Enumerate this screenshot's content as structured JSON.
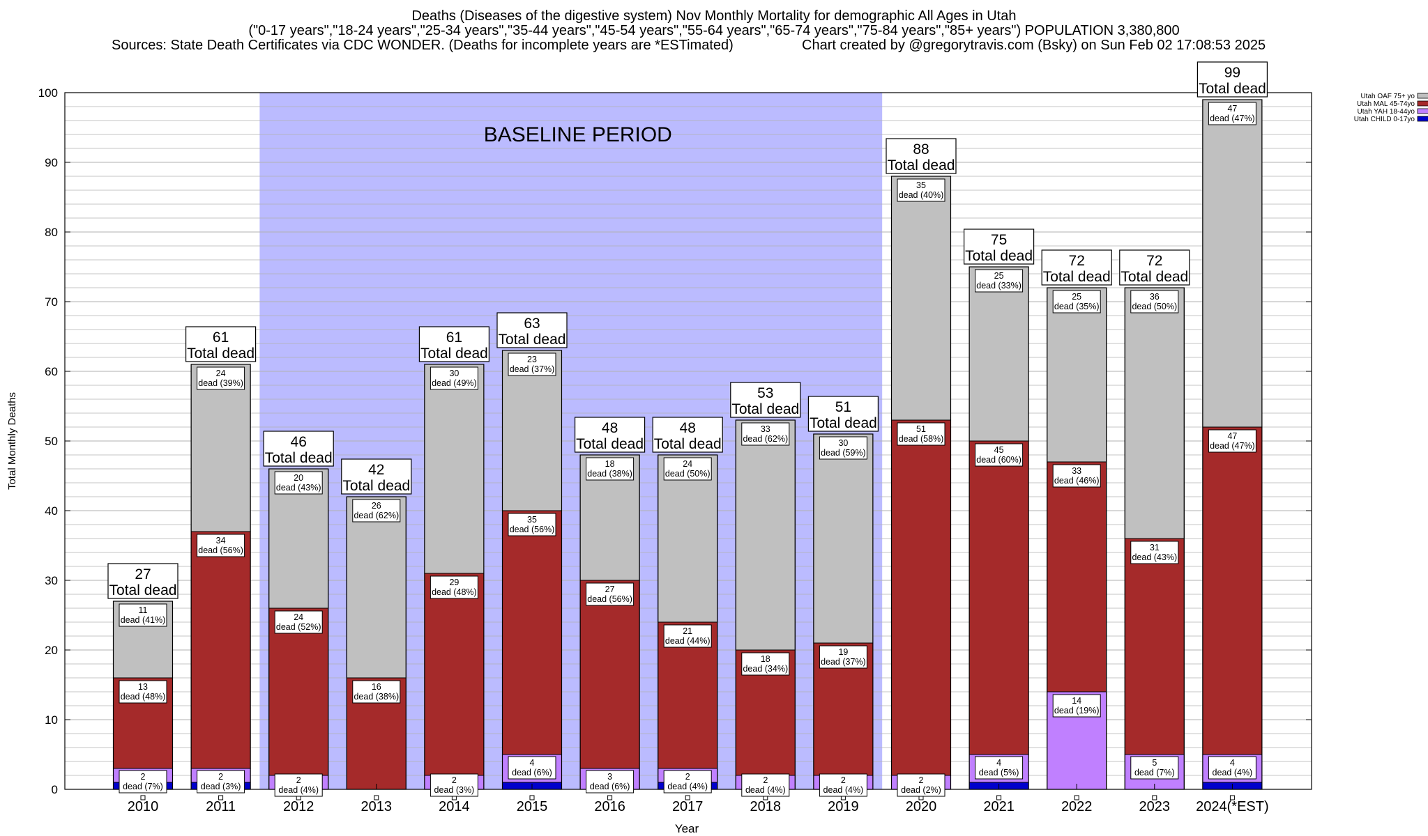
{
  "header": {
    "title_line1": "Deaths (Diseases of the digestive system) Nov Monthly Mortality for demographic All Ages in Utah",
    "title_line2": "(\"0-17 years\",\"18-24 years\",\"25-34 years\",\"35-44 years\",\"45-54 years\",\"55-64 years\",\"65-74 years\",\"75-84 years\",\"85+ years\") POPULATION 3,380,800",
    "sources": "Sources: State Death Certificates via CDC WONDER. (Deaths for incomplete years are *ESTimated)",
    "credit": "Chart created by @gregorytravis.com (Bsky) on Sun Feb 02 17:08:53 2025"
  },
  "chart_data": {
    "type": "bar",
    "stacked": true,
    "xlabel": "Year",
    "ylabel": "Total Monthly Deaths",
    "ylim": [
      0,
      100
    ],
    "y_ticks": [
      "0",
      "10",
      "20",
      "30",
      "40",
      "50",
      "60",
      "70",
      "80",
      "90",
      "100"
    ],
    "grid": true,
    "baseline_label": "BASELINE PERIOD",
    "baseline_categories": [
      "2012",
      "2019"
    ],
    "total_suffix": "Total dead",
    "categories": [
      "2010",
      "2011",
      "2012",
      "2013",
      "2014",
      "2015",
      "2016",
      "2017",
      "2018",
      "2019",
      "2020",
      "2021",
      "2022",
      "2023",
      "2024(*EST)"
    ],
    "totals": [
      27,
      61,
      46,
      42,
      61,
      63,
      48,
      48,
      53,
      51,
      88,
      75,
      72,
      72,
      99
    ],
    "legend_position": "top-right",
    "series": [
      {
        "name": "Utah CHILD 0-17yo",
        "color": "#0000cc",
        "values": [
          1,
          1,
          0,
          0,
          0,
          1,
          0,
          1,
          0,
          0,
          0,
          1,
          0,
          0,
          1
        ],
        "labels": [
          "",
          "",
          "",
          "",
          "",
          "",
          "",
          "",
          "",
          "",
          "",
          "",
          "",
          "",
          ""
        ]
      },
      {
        "name": "Utah YAH 18-44yo",
        "color": "#c080ff",
        "values": [
          2,
          2,
          2,
          0,
          2,
          4,
          3,
          2,
          2,
          2,
          2,
          4,
          14,
          5,
          4
        ],
        "labels": [
          [
            "2",
            "dead (7%)"
          ],
          [
            "2",
            "dead (3%)"
          ],
          [
            "2",
            "dead (4%)"
          ],
          "",
          [
            "2",
            "dead (3%)"
          ],
          [
            "4",
            "dead (6%)"
          ],
          [
            "3",
            "dead (6%)"
          ],
          [
            "2",
            "dead (4%)"
          ],
          [
            "2",
            "dead (4%)"
          ],
          [
            "2",
            "dead (4%)"
          ],
          [
            "2",
            "dead (2%)"
          ],
          [
            "4",
            "dead (5%)"
          ],
          [
            "14",
            "dead (19%)"
          ],
          [
            "5",
            "dead (7%)"
          ],
          [
            "4",
            "dead (4%)"
          ]
        ]
      },
      {
        "name": "Utah MAL 45-74yo",
        "color": "#a52a2a",
        "values": [
          13,
          34,
          24,
          16,
          29,
          35,
          27,
          21,
          18,
          19,
          51,
          45,
          33,
          31,
          47
        ],
        "labels": [
          [
            "13",
            "dead (48%)"
          ],
          [
            "34",
            "dead (56%)"
          ],
          [
            "24",
            "dead (52%)"
          ],
          [
            "16",
            "dead (38%)"
          ],
          [
            "29",
            "dead (48%)"
          ],
          [
            "35",
            "dead (56%)"
          ],
          [
            "27",
            "dead (56%)"
          ],
          [
            "21",
            "dead (44%)"
          ],
          [
            "18",
            "dead (34%)"
          ],
          [
            "19",
            "dead (37%)"
          ],
          [
            "51",
            "dead (58%)"
          ],
          [
            "45",
            "dead (60%)"
          ],
          [
            "33",
            "dead (46%)"
          ],
          [
            "31",
            "dead (43%)"
          ],
          [
            "47",
            "dead (47%)"
          ]
        ]
      },
      {
        "name": "Utah OAF 75+ yo",
        "color": "#c0c0c0",
        "values": [
          11,
          24,
          20,
          26,
          30,
          23,
          18,
          24,
          33,
          30,
          35,
          25,
          25,
          36,
          47
        ],
        "labels": [
          [
            "11",
            "dead (41%)"
          ],
          [
            "24",
            "dead (39%)"
          ],
          [
            "20",
            "dead (43%)"
          ],
          [
            "26",
            "dead (62%)"
          ],
          [
            "30",
            "dead (49%)"
          ],
          [
            "23",
            "dead (37%)"
          ],
          [
            "18",
            "dead (38%)"
          ],
          [
            "24",
            "dead (50%)"
          ],
          [
            "33",
            "dead (62%)"
          ],
          [
            "30",
            "dead (59%)"
          ],
          [
            "35",
            "dead (40%)"
          ],
          [
            "25",
            "dead (33%)"
          ],
          [
            "25",
            "dead (35%)"
          ],
          [
            "36",
            "dead (50%)"
          ],
          [
            "47",
            "dead (47%)"
          ]
        ]
      }
    ],
    "legend_order": [
      "Utah OAF 75+ yo",
      "Utah MAL 45-74yo",
      "Utah YAH 18-44yo",
      "Utah CHILD 0-17yo"
    ]
  }
}
